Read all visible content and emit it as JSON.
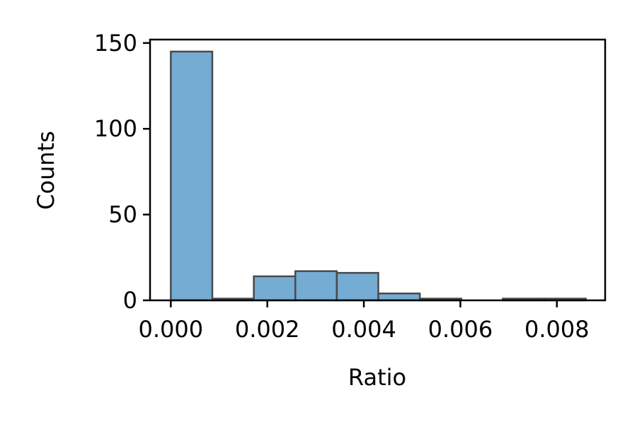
{
  "chart_data": {
    "type": "bar",
    "title": "",
    "xlabel": "Ratio",
    "ylabel": "Counts",
    "xlim": [
      -0.00043,
      0.009
    ],
    "ylim": [
      0,
      152
    ],
    "grid": false,
    "bar_color": "#74acd4",
    "edge_color": "#4a4a4a",
    "bins": [
      {
        "x0": 0.0,
        "x1": 0.00086,
        "count": 145
      },
      {
        "x0": 0.00086,
        "x1": 0.00172,
        "count": 1
      },
      {
        "x0": 0.00172,
        "x1": 0.00258,
        "count": 14
      },
      {
        "x0": 0.00258,
        "x1": 0.00344,
        "count": 17
      },
      {
        "x0": 0.00344,
        "x1": 0.0043,
        "count": 16
      },
      {
        "x0": 0.0043,
        "x1": 0.00516,
        "count": 4
      },
      {
        "x0": 0.00516,
        "x1": 0.00602,
        "count": 1
      },
      {
        "x0": 0.00602,
        "x1": 0.00688,
        "count": 0
      },
      {
        "x0": 0.00688,
        "x1": 0.00774,
        "count": 1
      },
      {
        "x0": 0.00774,
        "x1": 0.0086,
        "count": 1
      }
    ],
    "x_ticks": [
      {
        "value": 0.0,
        "label": "0.000"
      },
      {
        "value": 0.002,
        "label": "0.002"
      },
      {
        "value": 0.004,
        "label": "0.004"
      },
      {
        "value": 0.006,
        "label": "0.006"
      },
      {
        "value": 0.008,
        "label": "0.008"
      }
    ],
    "y_ticks": [
      {
        "value": 0,
        "label": "0"
      },
      {
        "value": 50,
        "label": "50"
      },
      {
        "value": 100,
        "label": "100"
      },
      {
        "value": 150,
        "label": "150"
      }
    ]
  }
}
